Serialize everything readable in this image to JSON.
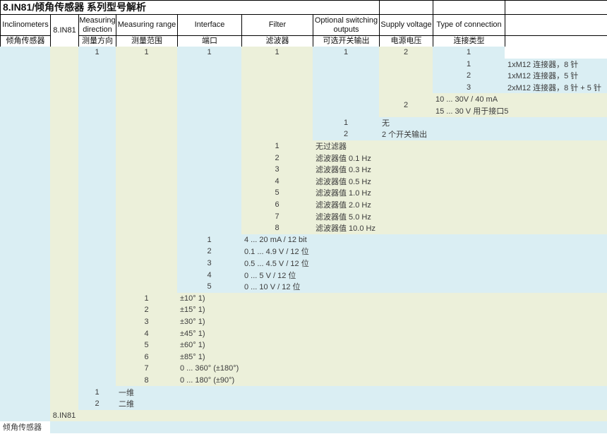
{
  "title": "8.IN81/倾角传感器 系列型号解析",
  "colors": {
    "band_blue": "#daeef3",
    "band_cream": "#ecf0da",
    "cell_white": "#ffffff",
    "border": "#000000",
    "text": "#3b3b3b"
  },
  "columns": [
    {
      "en": "Inclinometers",
      "zh": "倾角传感器"
    },
    {
      "en": "8.IN81",
      "zh": ""
    },
    {
      "en": "Measuring direction",
      "zh": "测量方向"
    },
    {
      "en": "Measuring range",
      "zh": "测量范围"
    },
    {
      "en": "Interface",
      "zh": "端口"
    },
    {
      "en": "Filter",
      "zh": "滤波器"
    },
    {
      "en": "Optional switching outputs",
      "zh": "可选开关输出"
    },
    {
      "en": "Supply voltage",
      "zh": "电源电压"
    },
    {
      "en": "Type of connection",
      "zh": "连接类型"
    }
  ],
  "code_row": {
    "values": [
      "",
      "",
      "1",
      "1",
      "1",
      "1",
      "1",
      "2",
      "1"
    ]
  },
  "blocks": [
    {
      "name": "type-of-connection",
      "column": 9,
      "options": [
        {
          "code": "1",
          "desc": "1xM12 连接器，8 针"
        },
        {
          "code": "2",
          "desc": "1xM12 连接器，5 针"
        },
        {
          "code": "3",
          "desc": "2xM12 连接器，8 针 + 5 针"
        }
      ]
    },
    {
      "name": "supply-voltage",
      "column": 8,
      "merged_code": "2",
      "options": [
        {
          "code": "",
          "desc": "10 ... 30V / 40 mA"
        },
        {
          "code": "",
          "desc": "15 ... 30 V 用于接口5"
        }
      ]
    },
    {
      "name": "switching-outputs",
      "column": 7,
      "options": [
        {
          "code": "1",
          "desc": "无"
        },
        {
          "code": "2",
          "desc": "2 个开关输出"
        }
      ]
    },
    {
      "name": "filter",
      "column": 6,
      "options": [
        {
          "code": "1",
          "desc": "无过滤器"
        },
        {
          "code": "2",
          "desc": "滤波器值 0.1 Hz"
        },
        {
          "code": "3",
          "desc": "滤波器值 0.3 Hz"
        },
        {
          "code": "4",
          "desc": "滤波器值 0.5 Hz"
        },
        {
          "code": "5",
          "desc": "滤波器值 1.0 Hz"
        },
        {
          "code": "6",
          "desc": "滤波器值 2.0 Hz"
        },
        {
          "code": "7",
          "desc": "滤波器值 5.0 Hz"
        },
        {
          "code": "8",
          "desc": "滤波器值 10.0 Hz"
        }
      ]
    },
    {
      "name": "interface",
      "column": 5,
      "options": [
        {
          "code": "1",
          "desc": "4 ... 20 mA / 12 bit"
        },
        {
          "code": "2",
          "desc": "0.1 ... 4.9 V / 12 位"
        },
        {
          "code": "3",
          "desc": "0.5 ... 4.5 V / 12 位"
        },
        {
          "code": "4",
          "desc": "0 ... 5 V / 12 位"
        },
        {
          "code": "5",
          "desc": "0 ... 10 V / 12 位"
        }
      ]
    },
    {
      "name": "measuring-range",
      "column": 4,
      "options": [
        {
          "code": "1",
          "desc": "±10° 1)"
        },
        {
          "code": "2",
          "desc": "±15° 1)"
        },
        {
          "code": "3",
          "desc": "±30° 1)"
        },
        {
          "code": "4",
          "desc": "±45° 1)"
        },
        {
          "code": "5",
          "desc": "±60° 1)"
        },
        {
          "code": "6",
          "desc": "±85° 1)"
        },
        {
          "code": "7",
          "desc": "0 ... 360° (±180°)"
        },
        {
          "code": "8",
          "desc": "0 ... 180° (±90°)"
        }
      ]
    },
    {
      "name": "measuring-direction",
      "column": 3,
      "options": [
        {
          "code": "1",
          "desc": "一维"
        },
        {
          "code": "2",
          "desc": "二维"
        }
      ]
    },
    {
      "name": "series",
      "column": 2,
      "options": [
        {
          "code": "8.IN81",
          "desc": ""
        }
      ]
    },
    {
      "name": "product-family",
      "column": 1,
      "options": [
        {
          "code": "倾角传感器",
          "desc": ""
        }
      ]
    }
  ]
}
